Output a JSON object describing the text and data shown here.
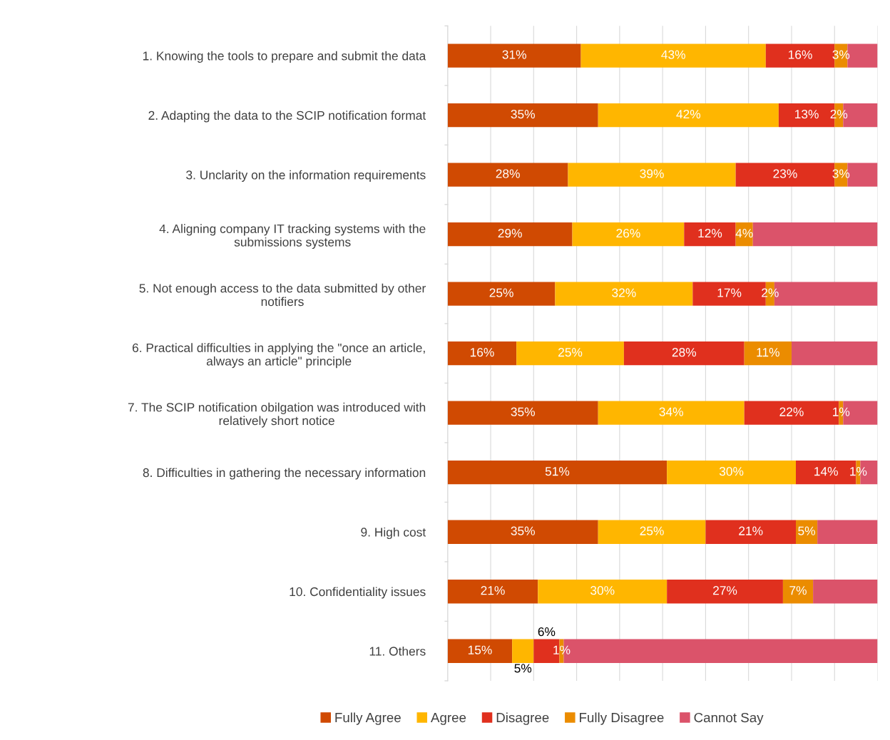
{
  "chart_data": {
    "type": "bar",
    "orientation": "horizontal",
    "stacked": true,
    "categories": [
      "1. Knowing the tools to prepare and submit the data",
      "2. Adapting the data to the SCIP notification format",
      "3. Unclarity on the information requirements",
      "4. Aligning company IT tracking systems with the\nsubmissions systems",
      "5. Not enough access to the data submitted by other\nnotifiers",
      "6. Practical difficulties in applying the \"once an article,\nalways an article\" principle",
      "7. The SCIP notification obilgation was introduced with\nrelatively short notice",
      "8. Difficulties in gathering the necessary information",
      "9. High cost",
      "10. Confidentiality issues",
      "11. Others"
    ],
    "series": [
      {
        "name": "Fully Agree",
        "color": "#d04a02",
        "values": [
          31,
          35,
          28,
          29,
          25,
          16,
          35,
          51,
          35,
          21,
          15
        ],
        "value_labels": [
          "31%",
          "35%",
          "28%",
          "29%",
          "25%",
          "16%",
          "35%",
          "51%",
          "35%",
          "21%",
          "15%"
        ]
      },
      {
        "name": "Agree",
        "color": "#ffb600",
        "values": [
          43,
          42,
          39,
          26,
          32,
          25,
          34,
          30,
          25,
          30,
          5
        ],
        "value_labels": [
          "43%",
          "42%",
          "39%",
          "26%",
          "32%",
          "25%",
          "34%",
          "30%",
          "25%",
          "30%",
          "5%"
        ]
      },
      {
        "name": "Disagree",
        "color": "#e0301e",
        "values": [
          16,
          13,
          23,
          12,
          17,
          28,
          22,
          14,
          21,
          27,
          6
        ],
        "value_labels": [
          "16%",
          "13%",
          "23%",
          "12%",
          "17%",
          "28%",
          "22%",
          "14%",
          "21%",
          "27%",
          "6%"
        ]
      },
      {
        "name": "Fully Disagree",
        "color": "#eb8c00",
        "values": [
          3,
          2,
          3,
          4,
          2,
          11,
          1,
          1,
          5,
          7,
          1
        ],
        "value_labels": [
          "3%",
          "2%",
          "3%",
          "4%",
          "2%",
          "11%",
          "1%",
          "1%",
          "5%",
          "7%",
          "1%"
        ]
      },
      {
        "name": "Cannot Say",
        "color": "#db536a",
        "values": [
          7,
          8,
          7,
          29,
          24,
          20,
          8,
          4,
          14,
          15,
          73
        ],
        "value_labels": [
          null,
          null,
          null,
          null,
          null,
          null,
          null,
          null,
          null,
          null,
          null
        ]
      }
    ],
    "xlim": [
      0,
      100
    ],
    "xticks": [
      {
        "value": 0,
        "label": null
      },
      {
        "value": 10,
        "label": null
      },
      {
        "value": 20,
        "label": null
      },
      {
        "value": 30,
        "label": null
      },
      {
        "value": 40,
        "label": null
      },
      {
        "value": 50,
        "label": null
      },
      {
        "value": 60,
        "label": null
      },
      {
        "value": 70,
        "label": null
      },
      {
        "value": 80,
        "label": null
      },
      {
        "value": 90,
        "label": null
      },
      {
        "value": 100,
        "label": null
      }
    ],
    "tick_labels": "y",
    "grid": "x",
    "legend": "bottom"
  }
}
